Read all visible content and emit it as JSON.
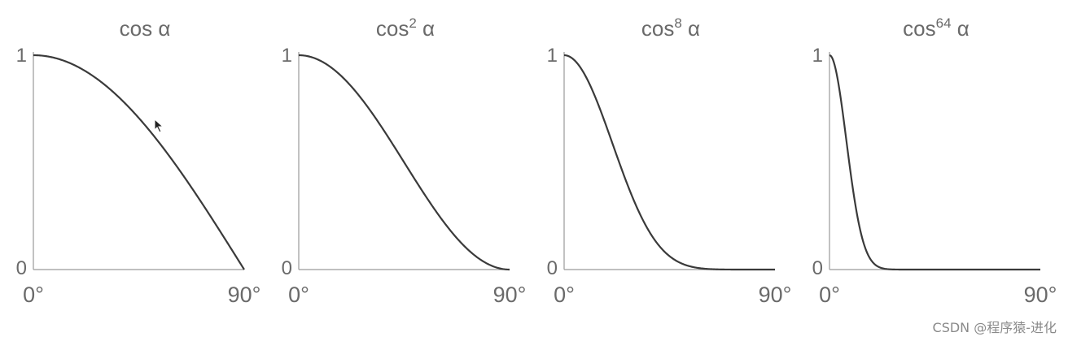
{
  "chart_data": [
    {
      "type": "line",
      "title": "cos α",
      "title_base": "cos",
      "exponent": "",
      "title_var": "α",
      "power": 1,
      "xlim": [
        0,
        90
      ],
      "ylim": [
        0,
        1
      ],
      "x_tick_labels": [
        "0°",
        "90°"
      ],
      "y_tick_labels": [
        "0",
        "1"
      ]
    },
    {
      "type": "line",
      "title": "cos2 α",
      "title_base": "cos",
      "exponent": "2",
      "title_var": "α",
      "power": 2,
      "xlim": [
        0,
        90
      ],
      "ylim": [
        0,
        1
      ],
      "x_tick_labels": [
        "0°",
        "90°"
      ],
      "y_tick_labels": [
        "0",
        "1"
      ]
    },
    {
      "type": "line",
      "title": "cos8 α",
      "title_base": "cos",
      "exponent": "8",
      "title_var": "α",
      "power": 8,
      "xlim": [
        0,
        90
      ],
      "ylim": [
        0,
        1
      ],
      "x_tick_labels": [
        "0°",
        "90°"
      ],
      "y_tick_labels": [
        "0",
        "1"
      ]
    },
    {
      "type": "line",
      "title": "cos64 α",
      "title_base": "cos",
      "exponent": "64",
      "title_var": "α",
      "power": 64,
      "xlim": [
        0,
        90
      ],
      "ylim": [
        0,
        1
      ],
      "x_tick_labels": [
        "0°",
        "90°"
      ],
      "y_tick_labels": [
        "0",
        "1"
      ]
    }
  ],
  "watermark": "CSDN @程序猿-进化",
  "colors": {
    "curve": "#3a3a3a",
    "axis": "#9a9a9a",
    "text": "#6a6a6a"
  }
}
